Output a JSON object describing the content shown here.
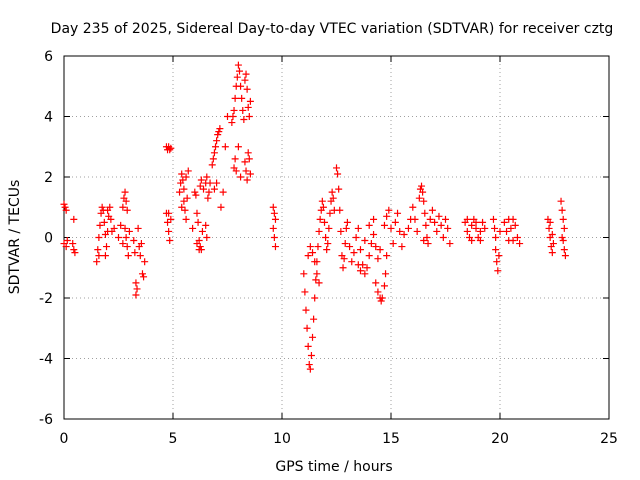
{
  "chart_data": {
    "type": "scatter",
    "title": "Day 235 of 2025, Sidereal Day-to-day VTEC variation (SDTVAR) for receiver cztg",
    "xlabel": "GPS time / hours",
    "ylabel": "SDTVAR / TECUs",
    "xlim": [
      0,
      25
    ],
    "ylim": [
      -6,
      6
    ],
    "xticks": [
      0,
      5,
      10,
      15,
      20,
      25
    ],
    "yticks": [
      -6,
      -4,
      -2,
      0,
      2,
      4,
      6
    ],
    "xtick_labels": [
      "0",
      "5",
      "10",
      "15",
      "20",
      "25"
    ],
    "ytick_labels": [
      "-6",
      "-4",
      "-2",
      "0",
      "2",
      "4",
      "6"
    ],
    "grid": true,
    "marker": "+",
    "series": [
      {
        "name": "SDTVAR",
        "color": "#ff0000",
        "points": [
          [
            0.0,
            1.1
          ],
          [
            0.05,
            1.0
          ],
          [
            0.1,
            0.9
          ],
          [
            0.0,
            -0.2
          ],
          [
            0.1,
            -0.3
          ],
          [
            0.15,
            -0.1
          ],
          [
            0.4,
            -0.2
          ],
          [
            0.45,
            -0.4
          ],
          [
            0.5,
            -0.5
          ],
          [
            0.45,
            0.6
          ],
          [
            1.5,
            -0.8
          ],
          [
            1.55,
            -0.4
          ],
          [
            1.6,
            0.0
          ],
          [
            1.65,
            0.4
          ],
          [
            1.7,
            0.8
          ],
          [
            1.75,
            1.0
          ],
          [
            1.8,
            0.9
          ],
          [
            1.85,
            0.5
          ],
          [
            1.9,
            0.1
          ],
          [
            1.95,
            -0.3
          ],
          [
            2.0,
            0.2
          ],
          [
            2.05,
            0.7
          ],
          [
            2.1,
            1.0
          ],
          [
            2.15,
            0.6
          ],
          [
            2.2,
            0.2
          ],
          [
            1.6,
            -0.6
          ],
          [
            1.9,
            -0.6
          ],
          [
            2.0,
            0.9
          ],
          [
            2.3,
            0.3
          ],
          [
            2.5,
            0.0
          ],
          [
            2.6,
            0.4
          ],
          [
            2.7,
            1.0
          ],
          [
            2.75,
            1.3
          ],
          [
            2.8,
            1.5
          ],
          [
            2.85,
            1.2
          ],
          [
            2.9,
            0.9
          ],
          [
            2.8,
            0.3
          ],
          [
            2.85,
            0.0
          ],
          [
            2.9,
            -0.3
          ],
          [
            2.95,
            -0.6
          ],
          [
            3.0,
            0.2
          ],
          [
            2.7,
            -0.2
          ],
          [
            3.2,
            -0.1
          ],
          [
            3.25,
            -0.5
          ],
          [
            3.3,
            -1.5
          ],
          [
            3.35,
            -1.7
          ],
          [
            3.3,
            -1.9
          ],
          [
            3.4,
            0.3
          ],
          [
            3.45,
            -0.3
          ],
          [
            3.5,
            -0.6
          ],
          [
            3.55,
            -0.2
          ],
          [
            3.6,
            -1.2
          ],
          [
            3.65,
            -1.3
          ],
          [
            3.7,
            -0.8
          ],
          [
            4.7,
            0.8
          ],
          [
            4.75,
            0.5
          ],
          [
            4.8,
            0.2
          ],
          [
            4.85,
            -0.1
          ],
          [
            4.9,
            0.6
          ],
          [
            4.8,
            0.8
          ],
          [
            4.7,
            3.0
          ],
          [
            4.75,
            2.9
          ],
          [
            4.8,
            3.0
          ],
          [
            4.85,
            2.9
          ],
          [
            4.9,
            2.95
          ],
          [
            5.3,
            1.5
          ],
          [
            5.35,
            1.8
          ],
          [
            5.4,
            2.1
          ],
          [
            5.45,
            1.9
          ],
          [
            5.5,
            1.6
          ],
          [
            5.5,
            1.2
          ],
          [
            5.55,
            0.9
          ],
          [
            5.6,
            0.6
          ],
          [
            5.65,
            1.3
          ],
          [
            5.7,
            2.2
          ],
          [
            5.4,
            1.0
          ],
          [
            5.6,
            2.0
          ],
          [
            5.9,
            0.3
          ],
          [
            6.0,
            1.5
          ],
          [
            6.05,
            1.4
          ],
          [
            6.1,
            0.8
          ],
          [
            6.15,
            0.5
          ],
          [
            6.2,
            -0.1
          ],
          [
            6.25,
            -0.3
          ],
          [
            6.3,
            -0.4
          ],
          [
            6.35,
            0.2
          ],
          [
            6.1,
            -0.2
          ],
          [
            6.2,
            -0.4
          ],
          [
            6.25,
            1.7
          ],
          [
            6.3,
            1.9
          ],
          [
            6.4,
            1.6
          ],
          [
            6.5,
            1.8
          ],
          [
            6.55,
            2.0
          ],
          [
            6.6,
            1.3
          ],
          [
            6.65,
            1.5
          ],
          [
            6.7,
            1.8
          ],
          [
            6.8,
            2.4
          ],
          [
            6.85,
            2.6
          ],
          [
            6.9,
            2.8
          ],
          [
            6.95,
            3.0
          ],
          [
            7.0,
            3.2
          ],
          [
            7.05,
            3.4
          ],
          [
            7.1,
            3.5
          ],
          [
            7.15,
            3.6
          ],
          [
            6.9,
            1.6
          ],
          [
            7.0,
            1.8
          ],
          [
            6.5,
            0.4
          ],
          [
            6.55,
            0.0
          ],
          [
            7.2,
            1.0
          ],
          [
            7.3,
            1.5
          ],
          [
            7.4,
            3.0
          ],
          [
            7.5,
            4.0
          ],
          [
            7.7,
            3.8
          ],
          [
            7.75,
            4.0
          ],
          [
            7.8,
            4.2
          ],
          [
            7.85,
            4.6
          ],
          [
            7.9,
            5.0
          ],
          [
            7.95,
            5.3
          ],
          [
            8.0,
            5.7
          ],
          [
            8.05,
            5.5
          ],
          [
            8.1,
            5.0
          ],
          [
            8.15,
            4.6
          ],
          [
            8.2,
            4.2
          ],
          [
            8.25,
            3.9
          ],
          [
            8.3,
            5.2
          ],
          [
            8.35,
            5.4
          ],
          [
            8.4,
            4.9
          ],
          [
            8.45,
            4.3
          ],
          [
            8.5,
            4.0
          ],
          [
            8.55,
            4.5
          ],
          [
            7.8,
            2.3
          ],
          [
            7.85,
            2.6
          ],
          [
            7.9,
            2.2
          ],
          [
            8.0,
            3.0
          ],
          [
            8.1,
            2.0
          ],
          [
            8.3,
            2.5
          ],
          [
            8.35,
            2.2
          ],
          [
            8.4,
            1.9
          ],
          [
            8.45,
            2.8
          ],
          [
            8.5,
            2.6
          ],
          [
            8.55,
            2.1
          ],
          [
            9.6,
            1.0
          ],
          [
            9.65,
            0.8
          ],
          [
            9.7,
            0.6
          ],
          [
            9.6,
            0.3
          ],
          [
            9.65,
            0.0
          ],
          [
            9.7,
            -0.3
          ],
          [
            11.0,
            -1.2
          ],
          [
            11.05,
            -1.8
          ],
          [
            11.1,
            -2.4
          ],
          [
            11.15,
            -3.0
          ],
          [
            11.2,
            -3.6
          ],
          [
            11.25,
            -4.2
          ],
          [
            11.3,
            -4.35
          ],
          [
            11.35,
            -3.9
          ],
          [
            11.4,
            -3.3
          ],
          [
            11.45,
            -2.7
          ],
          [
            11.5,
            -2.0
          ],
          [
            11.55,
            -1.4
          ],
          [
            11.6,
            -0.8
          ],
          [
            11.65,
            -0.3
          ],
          [
            11.7,
            0.2
          ],
          [
            11.75,
            0.6
          ],
          [
            11.8,
            0.9
          ],
          [
            11.85,
            1.2
          ],
          [
            11.9,
            1.0
          ],
          [
            11.95,
            0.5
          ],
          [
            12.0,
            0.0
          ],
          [
            12.05,
            -0.4
          ],
          [
            12.1,
            -0.2
          ],
          [
            12.15,
            0.3
          ],
          [
            12.2,
            0.8
          ],
          [
            12.25,
            1.2
          ],
          [
            12.3,
            1.5
          ],
          [
            12.35,
            1.3
          ],
          [
            12.4,
            0.9
          ],
          [
            11.4,
            -0.5
          ],
          [
            11.5,
            -0.8
          ],
          [
            11.6,
            -1.2
          ],
          [
            11.7,
            -1.5
          ],
          [
            11.3,
            -0.3
          ],
          [
            11.2,
            -0.6
          ],
          [
            12.5,
            2.3
          ],
          [
            12.55,
            2.1
          ],
          [
            12.6,
            1.6
          ],
          [
            12.65,
            0.9
          ],
          [
            12.7,
            0.2
          ],
          [
            12.75,
            -0.6
          ],
          [
            12.8,
            -1.0
          ],
          [
            12.85,
            -0.7
          ],
          [
            12.9,
            -0.2
          ],
          [
            12.95,
            0.3
          ],
          [
            13.0,
            0.5
          ],
          [
            13.1,
            -0.3
          ],
          [
            13.2,
            -0.8
          ],
          [
            13.3,
            -0.5
          ],
          [
            13.4,
            0.0
          ],
          [
            13.5,
            0.3
          ],
          [
            13.6,
            -0.4
          ],
          [
            13.7,
            -0.9
          ],
          [
            13.8,
            -1.2
          ],
          [
            13.9,
            -1.0
          ],
          [
            14.0,
            -0.6
          ],
          [
            14.1,
            -0.2
          ],
          [
            14.2,
            0.1
          ],
          [
            14.3,
            -0.3
          ],
          [
            14.4,
            -0.7
          ],
          [
            14.5,
            -0.4
          ],
          [
            13.5,
            -0.9
          ],
          [
            13.6,
            -1.1
          ],
          [
            13.8,
            -0.1
          ],
          [
            14.0,
            0.4
          ],
          [
            14.2,
            0.6
          ],
          [
            14.3,
            -1.5
          ],
          [
            14.4,
            -1.8
          ],
          [
            14.5,
            -2.0
          ],
          [
            14.55,
            -2.1
          ],
          [
            14.6,
            -2.0
          ],
          [
            14.7,
            -1.6
          ],
          [
            14.75,
            -1.2
          ],
          [
            14.8,
            -0.6
          ],
          [
            14.7,
            0.4
          ],
          [
            14.8,
            0.7
          ],
          [
            14.9,
            0.9
          ],
          [
            15.0,
            0.3
          ],
          [
            15.1,
            -0.2
          ],
          [
            15.2,
            0.5
          ],
          [
            15.3,
            0.8
          ],
          [
            15.4,
            0.2
          ],
          [
            15.5,
            -0.3
          ],
          [
            15.6,
            0.1
          ],
          [
            15.8,
            0.3
          ],
          [
            15.9,
            0.6
          ],
          [
            16.0,
            1.0
          ],
          [
            16.1,
            0.6
          ],
          [
            16.2,
            0.2
          ],
          [
            16.3,
            1.3
          ],
          [
            16.35,
            1.6
          ],
          [
            16.4,
            1.7
          ],
          [
            16.45,
            1.5
          ],
          [
            16.5,
            1.2
          ],
          [
            16.55,
            0.8
          ],
          [
            16.6,
            0.4
          ],
          [
            16.65,
            0.0
          ],
          [
            16.7,
            -0.2
          ],
          [
            16.8,
            0.6
          ],
          [
            16.9,
            0.9
          ],
          [
            17.0,
            0.5
          ],
          [
            17.1,
            0.2
          ],
          [
            17.2,
            0.7
          ],
          [
            17.3,
            0.4
          ],
          [
            17.4,
            0.0
          ],
          [
            17.5,
            0.6
          ],
          [
            17.6,
            0.3
          ],
          [
            17.7,
            -0.2
          ],
          [
            16.5,
            -0.1
          ],
          [
            18.4,
            0.5
          ],
          [
            18.5,
            0.2
          ],
          [
            18.6,
            0.0
          ],
          [
            18.7,
            0.4
          ],
          [
            18.8,
            0.6
          ],
          [
            18.9,
            0.3
          ],
          [
            19.0,
            0.0
          ],
          [
            19.1,
            0.2
          ],
          [
            19.2,
            0.5
          ],
          [
            19.3,
            0.3
          ],
          [
            18.5,
            0.6
          ],
          [
            18.7,
            -0.1
          ],
          [
            18.9,
            0.5
          ],
          [
            19.1,
            -0.1
          ],
          [
            19.7,
            0.6
          ],
          [
            19.75,
            0.3
          ],
          [
            19.8,
            0.0
          ],
          [
            19.8,
            -0.4
          ],
          [
            19.85,
            -0.8
          ],
          [
            19.9,
            -1.1
          ],
          [
            19.95,
            -0.6
          ],
          [
            20.0,
            0.2
          ],
          [
            20.2,
            0.5
          ],
          [
            20.3,
            0.2
          ],
          [
            20.4,
            -0.1
          ],
          [
            20.5,
            0.3
          ],
          [
            20.6,
            0.6
          ],
          [
            20.7,
            0.4
          ],
          [
            20.8,
            0.0
          ],
          [
            20.9,
            -0.2
          ],
          [
            20.4,
            0.6
          ],
          [
            20.6,
            -0.1
          ],
          [
            22.2,
            0.6
          ],
          [
            22.25,
            0.3
          ],
          [
            22.3,
            0.0
          ],
          [
            22.35,
            -0.3
          ],
          [
            22.4,
            -0.5
          ],
          [
            22.45,
            -0.2
          ],
          [
            22.3,
            0.5
          ],
          [
            22.4,
            0.1
          ],
          [
            22.8,
            1.2
          ],
          [
            22.85,
            0.9
          ],
          [
            22.9,
            0.6
          ],
          [
            22.95,
            0.3
          ],
          [
            22.9,
            -0.1
          ],
          [
            22.95,
            -0.4
          ],
          [
            23.0,
            -0.6
          ],
          [
            22.85,
            0.0
          ]
        ]
      }
    ]
  }
}
